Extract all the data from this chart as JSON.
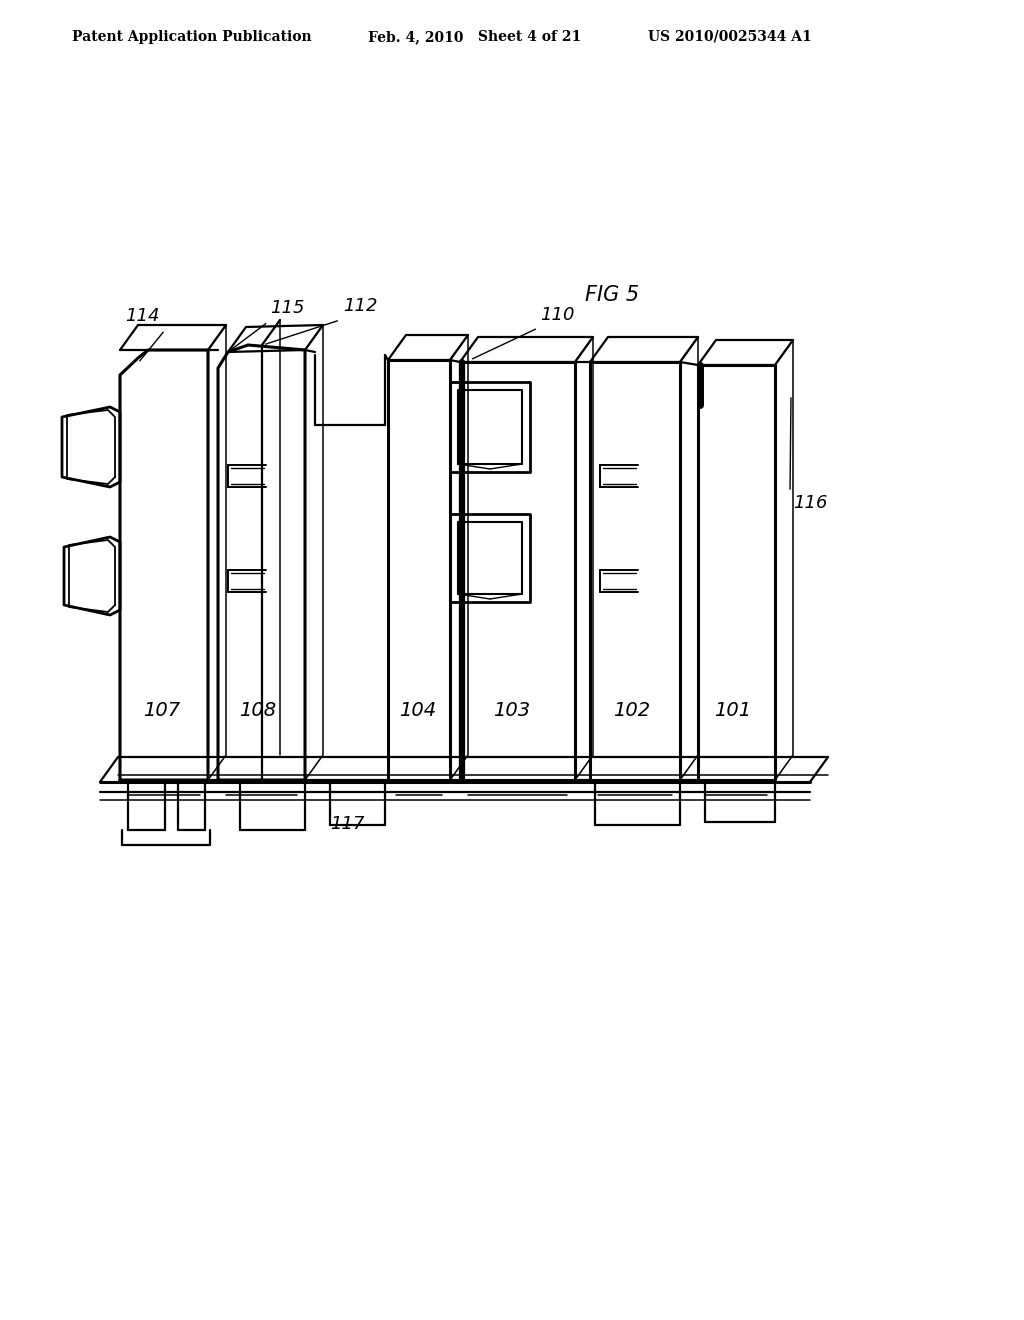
{
  "background": "#ffffff",
  "header_left": "Patent Application Publication",
  "header_mid1": "Feb. 4, 2010",
  "header_mid2": "Sheet 4 of 21",
  "header_right": "US 2010/0025344 A1",
  "fig_label": "FIG 5",
  "lw_heavy": 2.2,
  "lw_med": 1.6,
  "lw_light": 1.1
}
